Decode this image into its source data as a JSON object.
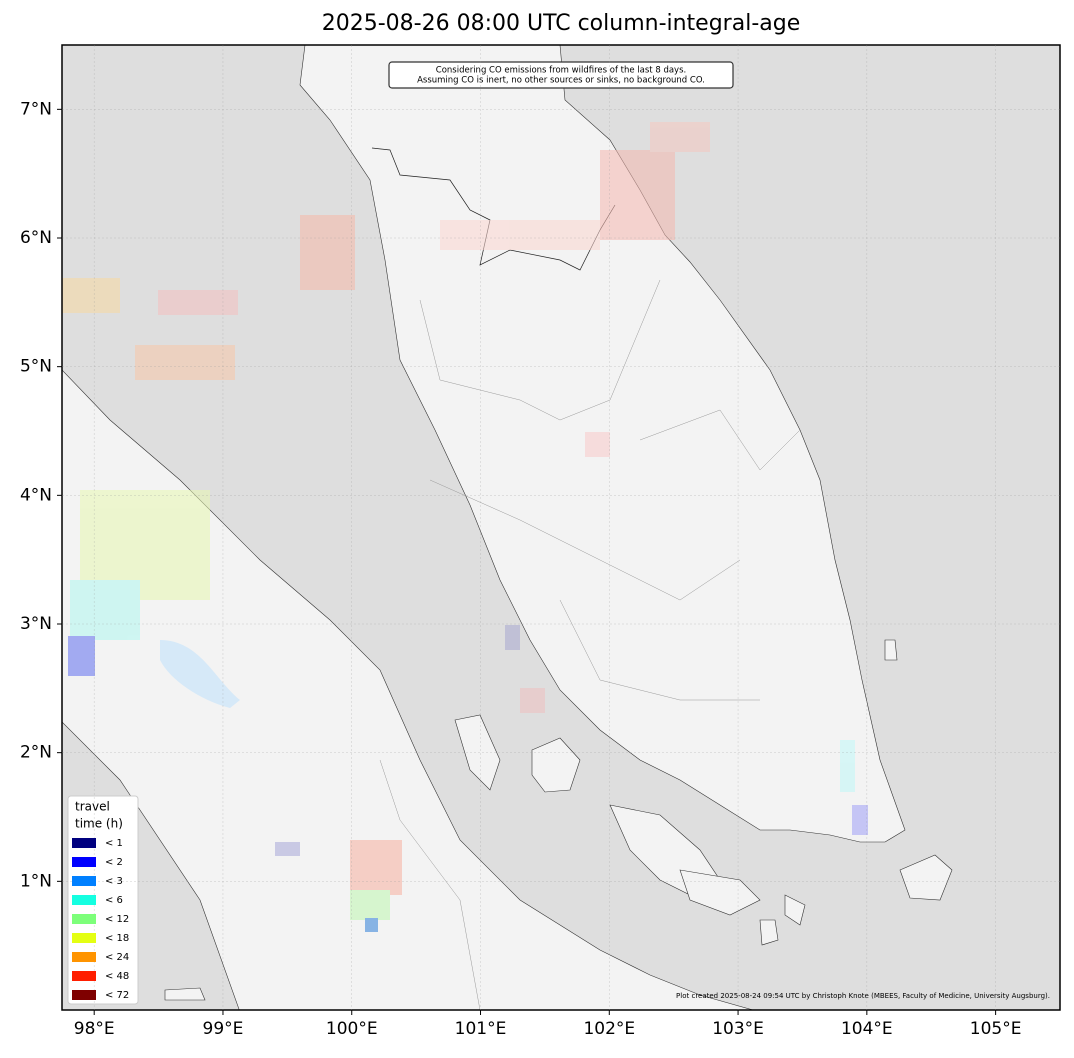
{
  "title": "2025-08-26 08:00 UTC column-integral-age",
  "annotation": [
    "Considering CO emissions from wildfires of the last 8 days.",
    "Assuming CO is inert, no other sources or sinks, no background CO."
  ],
  "credit": "Plot created 2025-08-24 09:54 UTC by Christoph Knote (MBEES, Faculty of Medicine, University Augsburg).",
  "map": {
    "xlim": [
      97.75,
      105.5
    ],
    "ylim": [
      0,
      7.5
    ],
    "xticks": [
      {
        "value": 98,
        "label": "98°E"
      },
      {
        "value": 99,
        "label": "99°E"
      },
      {
        "value": 100,
        "label": "100°E"
      },
      {
        "value": 101,
        "label": "101°E"
      },
      {
        "value": 102,
        "label": "102°E"
      },
      {
        "value": 103,
        "label": "103°E"
      },
      {
        "value": 104,
        "label": "104°E"
      },
      {
        "value": 105,
        "label": "105°E"
      }
    ],
    "yticks": [
      {
        "value": 1,
        "label": "1°N"
      },
      {
        "value": 2,
        "label": "2°N"
      },
      {
        "value": 3,
        "label": "3°N"
      },
      {
        "value": 4,
        "label": "4°N"
      },
      {
        "value": 5,
        "label": "5°N"
      },
      {
        "value": 6,
        "label": "6°N"
      },
      {
        "value": 7,
        "label": "7°N"
      }
    ],
    "grid": true
  },
  "legend": {
    "title": [
      "travel",
      "time (h)"
    ],
    "items": [
      {
        "label": "< 1",
        "color": "#00007f"
      },
      {
        "label": "< 2",
        "color": "#0000ff"
      },
      {
        "label": "< 3",
        "color": "#0080ff"
      },
      {
        "label": "< 6",
        "color": "#15ffe1"
      },
      {
        "label": "< 12",
        "color": "#7dff7a"
      },
      {
        "label": "< 18",
        "color": "#e4ff13"
      },
      {
        "label": "< 24",
        "color": "#ff9400"
      },
      {
        "label": "< 48",
        "color": "#ff1e00"
      },
      {
        "label": "< 72",
        "color": "#7f0000"
      }
    ]
  }
}
